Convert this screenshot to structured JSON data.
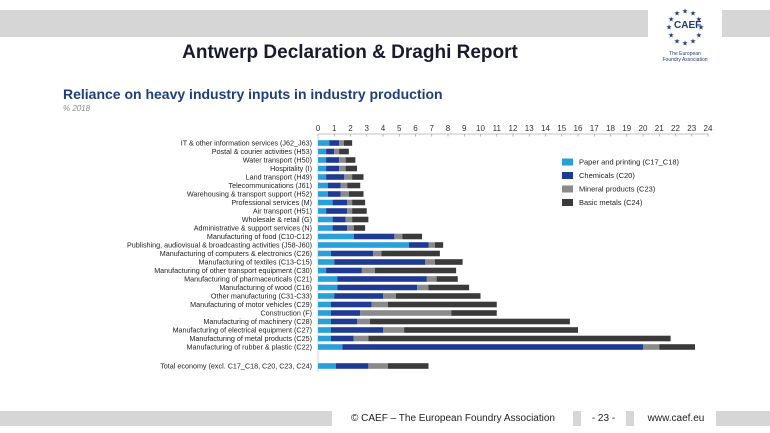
{
  "slide": {
    "title": "Antwerp Declaration & Draghi Report"
  },
  "logo": {
    "text": "CAEF",
    "sub1": "The European",
    "sub2": "Foundry Association"
  },
  "footer": {
    "copyright": "© CAEF – The European Foundry Association",
    "page": "- 23 -",
    "website": "www.caef.eu"
  },
  "chart_data": {
    "type": "bar",
    "orientation": "horizontal",
    "stacked": true,
    "title": "Reliance on heavy industry inputs in industry production",
    "subtitle": "% 2018",
    "xlim": [
      0,
      24
    ],
    "x_ticks": [
      0,
      1,
      2,
      3,
      4,
      5,
      6,
      7,
      8,
      9,
      10,
      11,
      12,
      13,
      14,
      15,
      16,
      17,
      18,
      19,
      20,
      21,
      22,
      23,
      24
    ],
    "x_axis_position": "top",
    "grid": false,
    "legend_position": "right",
    "categories": [
      "IT & other information services (J62_J63)",
      "Postal & courier activities (H53)",
      "Water transport (H50)",
      "Hospitality (I)",
      "Land transport (H49)",
      "Telecommunications (J61)",
      "Warehousing & transport support (H52)",
      "Professional services (M)",
      "Air transport (H51)",
      "Wholesale & retail (G)",
      "Administrative & support services (N)",
      "Manufacturing of food (C10-C12)",
      "Publishing, audiovisual & broadcasting activities (J58-J60)",
      "Manufacturing of computers & electronics (C26)",
      "Manufacturing of textiles (C13-C15)",
      "Manufacturing of other transport equipment (C30)",
      "Manufacturing of pharmaceuticals (C21)",
      "Manufacturing of wood (C16)",
      "Other manufacturing (C31-C33)",
      "Manufacturing of motor vehicles (C29)",
      "Construction (F)",
      "Manufacturing of machinery (C28)",
      "Manufacturing of electrical equipment (C27)",
      "Manufacturing of metal products (C25)",
      "Manufacturing of rubber & plastic (C22)",
      "Total economy (excl. C17_C18, C20, C23, C24)"
    ],
    "series": [
      {
        "name": "Paper and printing (C17_C18)",
        "color": "#2aa0d8",
        "values": [
          0.7,
          0.5,
          0.5,
          0.5,
          0.5,
          0.6,
          0.6,
          0.9,
          0.5,
          0.9,
          0.9,
          2.2,
          5.6,
          0.8,
          1.0,
          0.5,
          1.2,
          1.2,
          1.0,
          0.8,
          0.8,
          0.8,
          0.8,
          0.8,
          1.5,
          1.1
        ]
      },
      {
        "name": "Chemicals (C20)",
        "color": "#1f3a93",
        "values": [
          0.6,
          0.5,
          0.8,
          0.8,
          1.1,
          0.8,
          0.8,
          0.9,
          1.3,
          0.8,
          0.9,
          2.5,
          1.2,
          2.6,
          5.6,
          2.2,
          5.5,
          4.9,
          3.0,
          2.5,
          1.8,
          1.6,
          3.2,
          1.4,
          18.5,
          2.0
        ]
      },
      {
        "name": "Mineral products (C23)",
        "color": "#8a8a8a",
        "values": [
          0.3,
          0.3,
          0.4,
          0.4,
          0.5,
          0.4,
          0.5,
          0.3,
          0.3,
          0.4,
          0.4,
          0.5,
          0.4,
          0.5,
          0.6,
          0.8,
          0.6,
          0.7,
          0.8,
          1.0,
          5.6,
          0.8,
          1.3,
          0.9,
          1.0,
          1.2
        ]
      },
      {
        "name": "Basic metals (C24)",
        "color": "#3a3a3a",
        "values": [
          0.5,
          0.6,
          0.6,
          0.7,
          0.7,
          0.8,
          0.9,
          0.8,
          0.9,
          1.0,
          0.7,
          1.2,
          0.5,
          3.6,
          1.7,
          5.0,
          1.3,
          2.5,
          5.2,
          6.7,
          2.8,
          12.3,
          10.7,
          18.6,
          2.2,
          2.5
        ]
      }
    ]
  }
}
